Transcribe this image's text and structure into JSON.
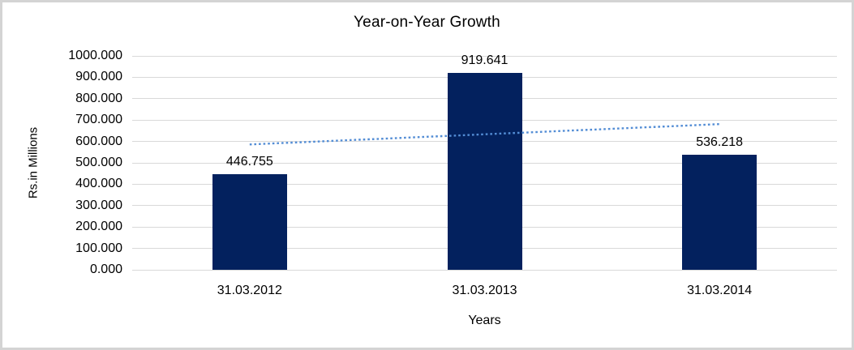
{
  "chart_data": {
    "type": "bar",
    "title": "Year-on-Year Growth",
    "xlabel": "Years",
    "ylabel": "Rs.in Millions",
    "categories": [
      "31.03.2012",
      "31.03.2013",
      "31.03.2014"
    ],
    "values": [
      446.755,
      919.641,
      536.218
    ],
    "bar_labels": [
      "446.755",
      "919.641",
      "536.218"
    ],
    "ylim": [
      0,
      1000
    ],
    "ytick_labels": [
      "0.000",
      "100.000",
      "200.000",
      "300.000",
      "400.000",
      "500.000",
      "600.000",
      "700.000",
      "800.000",
      "900.000",
      "1000.000"
    ],
    "grid": "horizontal-major",
    "legend_position": "none",
    "trendline": {
      "type": "linear",
      "style": "dotted",
      "start_value": 586,
      "end_value": 681
    },
    "colors": {
      "bar": "#03215E",
      "trendline": "#538DD5",
      "gridline": "#D9D9D9",
      "text": "#000000",
      "frame_border": "#D4D4D4",
      "background": "#FFFFFF"
    }
  }
}
